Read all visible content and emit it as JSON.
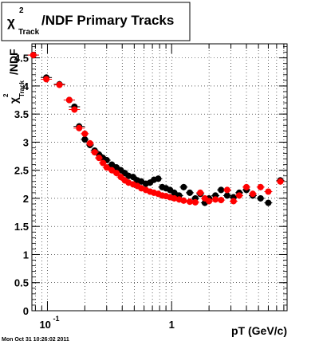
{
  "timestamp": "Mon Oct 31 10:26:02 2011",
  "chart_data": {
    "type": "scatter",
    "title": {
      "prefix": "χ",
      "superscript": "2",
      "subscript": "Track",
      "main": "/NDF  Primary Tracks"
    },
    "ylabel": {
      "prefix": "χ",
      "superscript": "2",
      "subscript": "Track",
      "main": "/NDF"
    },
    "xlabel": "pT (GeV/c)",
    "xscale": "log",
    "xlim": [
      0.075,
      8.5
    ],
    "ylim": [
      0,
      4.75
    ],
    "grid": true,
    "x_tick_labels": [
      {
        "x": 0.1,
        "base": "10",
        "exp": "-1"
      },
      {
        "x": 1,
        "base": "1",
        "exp": ""
      }
    ],
    "y_ticks": [
      0,
      0.5,
      1,
      1.5,
      2,
      2.5,
      3,
      3.5,
      4,
      4.5
    ],
    "y_tick_labels": [
      "0",
      "0.5",
      "1",
      "1.5",
      "2",
      "2.5",
      "3",
      "3.5",
      "4",
      "4.5"
    ],
    "colors": {
      "series_black": "#000000",
      "series_red": "#ff0000"
    },
    "series": [
      {
        "color": "#000000",
        "x": [
          0.077,
          0.098,
          0.125,
          0.15,
          0.165,
          0.18,
          0.2,
          0.22,
          0.24,
          0.26,
          0.28,
          0.3,
          0.33,
          0.36,
          0.39,
          0.42,
          0.45,
          0.49,
          0.53,
          0.57,
          0.62,
          0.67,
          0.72,
          0.78,
          0.84,
          0.9,
          0.97,
          1.05,
          1.15,
          1.25,
          1.4,
          1.55,
          1.7,
          1.85,
          2.0,
          2.25,
          2.5,
          2.8,
          3.15,
          3.5,
          4.0,
          4.5,
          5.2,
          6.0,
          7.5
        ],
        "y": [
          4.55,
          4.15,
          4.03,
          3.75,
          3.63,
          3.28,
          3.05,
          2.95,
          2.85,
          2.78,
          2.72,
          2.68,
          2.6,
          2.55,
          2.5,
          2.45,
          2.4,
          2.38,
          2.32,
          2.3,
          2.26,
          2.28,
          2.33,
          2.35,
          2.2,
          2.18,
          2.15,
          2.1,
          2.05,
          2.2,
          2.1,
          2.0,
          2.08,
          1.92,
          2.0,
          2.05,
          2.15,
          2.05,
          2.02,
          2.1,
          2.15,
          2.05,
          2.0,
          1.92,
          2.32
        ]
      },
      {
        "color": "#ff0000",
        "x": [
          0.077,
          0.098,
          0.125,
          0.15,
          0.165,
          0.18,
          0.2,
          0.22,
          0.24,
          0.26,
          0.28,
          0.3,
          0.33,
          0.36,
          0.39,
          0.42,
          0.45,
          0.49,
          0.53,
          0.57,
          0.62,
          0.67,
          0.72,
          0.78,
          0.84,
          0.9,
          0.97,
          1.05,
          1.15,
          1.25,
          1.4,
          1.55,
          1.7,
          1.85,
          2.0,
          2.25,
          2.5,
          2.8,
          3.15,
          3.5,
          4.0,
          4.5,
          5.2,
          6.0,
          7.5
        ],
        "y": [
          4.55,
          4.12,
          4.02,
          3.75,
          3.58,
          3.25,
          3.15,
          2.98,
          2.82,
          2.72,
          2.63,
          2.55,
          2.5,
          2.45,
          2.38,
          2.32,
          2.28,
          2.25,
          2.22,
          2.18,
          2.15,
          2.12,
          2.1,
          2.08,
          2.05,
          2.04,
          2.02,
          2.0,
          1.98,
          1.96,
          1.94,
          1.93,
          2.1,
          2.0,
          1.95,
          1.98,
          1.97,
          2.15,
          1.95,
          2.05,
          2.2,
          2.08,
          2.2,
          2.12,
          2.3
        ]
      }
    ]
  }
}
